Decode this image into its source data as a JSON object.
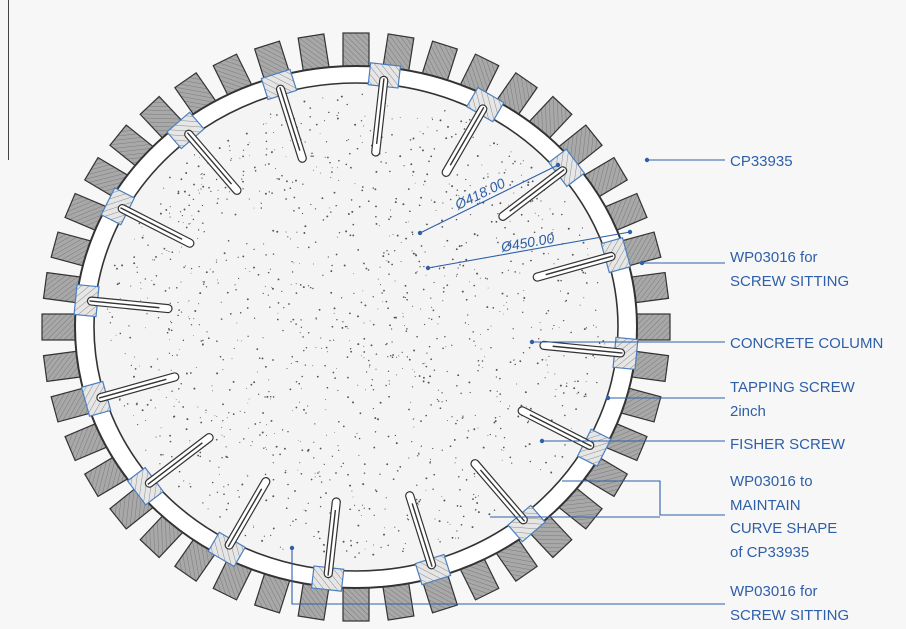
{
  "colors": {
    "leader": "#2e5fa8",
    "fin": "#9b9b9b",
    "outline": "#333333",
    "concrete": "#f4f4f4",
    "background": "#f7f7f7"
  },
  "dimensions": {
    "inner": "Ø418.00",
    "outer": "Ø450.00"
  },
  "labels": {
    "cp33935": "CP33935",
    "wp_sitting_top_1": "WP03016 for",
    "wp_sitting_top_2": "SCREW SITTING",
    "concrete_column": "CONCRETE COLUMN",
    "tapping_1": "TAPPING SCREW",
    "tapping_2": "2inch",
    "fisher": "FISHER SCREW",
    "maintain_1": "WP03016 to",
    "maintain_2": "MAINTAIN",
    "maintain_3": "CURVE SHAPE",
    "maintain_4": "of CP33935",
    "wp_sitting_bottom_1": "WP03016 for",
    "wp_sitting_bottom_2": "SCREW SITTING"
  },
  "icons": {
    "fins": "cladding-fin-icon",
    "screws": "fisher-screw-icon",
    "blocks": "wp-block-icon"
  }
}
